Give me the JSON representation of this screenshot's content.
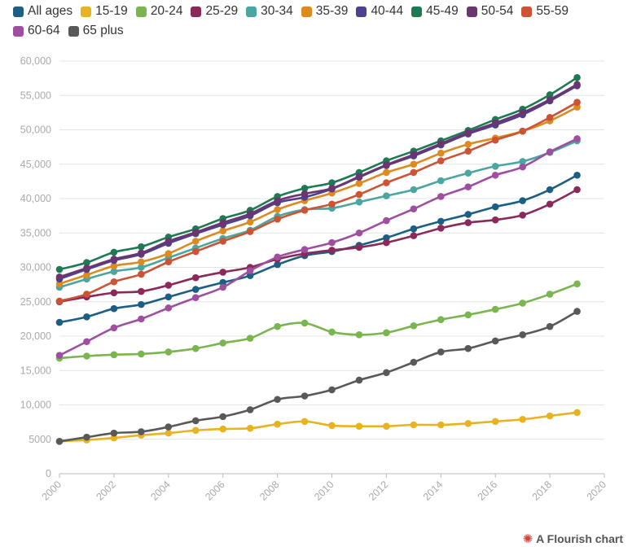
{
  "chart_data": {
    "type": "line",
    "title": "",
    "xlabel": "",
    "ylabel": "",
    "x": [
      2000,
      2001,
      2002,
      2003,
      2004,
      2005,
      2006,
      2007,
      2008,
      2009,
      2010,
      2011,
      2012,
      2013,
      2014,
      2015,
      2016,
      2017,
      2018,
      2019
    ],
    "xlim": [
      2000,
      2020
    ],
    "ylim": [
      0,
      60000
    ],
    "x_ticks": [
      2000,
      2002,
      2004,
      2006,
      2008,
      2010,
      2012,
      2014,
      2016,
      2018,
      2020
    ],
    "x_tick_labels": [
      "2000",
      "2002",
      "2004",
      "2006",
      "2008",
      "2010",
      "2012",
      "2014",
      "2016",
      "2018",
      "2020"
    ],
    "y_ticks": [
      0,
      5000,
      10000,
      15000,
      20000,
      25000,
      30000,
      35000,
      40000,
      45000,
      50000,
      55000,
      60000
    ],
    "y_tick_labels": [
      "0",
      "5000",
      "10,000",
      "15,000",
      "20,000",
      "25,000",
      "30,000",
      "35,000",
      "40,000",
      "45,000",
      "50,000",
      "55,000",
      "60,000"
    ],
    "grid": "horizontal",
    "legend_position": "top",
    "series": [
      {
        "name": "All ages",
        "color": "#1d5f84",
        "values": [
          22000,
          22800,
          24000,
          24600,
          25700,
          26800,
          27800,
          28800,
          30400,
          31700,
          32300,
          33200,
          34300,
          35600,
          36700,
          37700,
          38800,
          39700,
          41300,
          43400
        ]
      },
      {
        "name": "15-19",
        "color": "#e8b323",
        "values": [
          4700,
          4900,
          5200,
          5600,
          5900,
          6300,
          6500,
          6600,
          7200,
          7600,
          7000,
          6900,
          6900,
          7100,
          7100,
          7300,
          7600,
          7900,
          8400,
          8900
        ]
      },
      {
        "name": "20-24",
        "color": "#7ab54f",
        "values": [
          16800,
          17100,
          17300,
          17400,
          17700,
          18200,
          19000,
          19700,
          21400,
          21900,
          20600,
          20200,
          20500,
          21500,
          22400,
          23100,
          23900,
          24800,
          26100,
          27600
        ]
      },
      {
        "name": "25-29",
        "color": "#8b2a5a",
        "values": [
          25000,
          25700,
          26300,
          26500,
          27400,
          28500,
          29300,
          30000,
          31200,
          32000,
          32500,
          32900,
          33600,
          34600,
          35700,
          36500,
          36900,
          37600,
          39200,
          41300
        ]
      },
      {
        "name": "30-34",
        "color": "#4aa6a0",
        "values": [
          27100,
          28300,
          29400,
          30000,
          31400,
          32800,
          34200,
          35400,
          37400,
          38400,
          38600,
          39500,
          40400,
          41300,
          42600,
          43700,
          44700,
          45400,
          46700,
          48400
        ]
      },
      {
        "name": "35-39",
        "color": "#dd8a1f",
        "values": [
          27600,
          28900,
          30200,
          30800,
          32000,
          33800,
          35300,
          36600,
          38400,
          39700,
          40800,
          42200,
          43800,
          45000,
          46600,
          47900,
          48800,
          49800,
          51300,
          53300
        ]
      },
      {
        "name": "40-44",
        "color": "#4e4191",
        "values": [
          28300,
          29700,
          31000,
          31900,
          33500,
          34900,
          36200,
          37500,
          39400,
          40200,
          41400,
          43100,
          44800,
          46200,
          47800,
          49400,
          50700,
          52200,
          54200,
          56400
        ]
      },
      {
        "name": "45-49",
        "color": "#1e7a52",
        "values": [
          29700,
          30700,
          32200,
          33000,
          34400,
          35600,
          37100,
          38300,
          40300,
          41500,
          42300,
          43800,
          45500,
          46900,
          48400,
          49900,
          51500,
          53000,
          55100,
          57600
        ]
      },
      {
        "name": "50-54",
        "color": "#6b3570",
        "values": [
          28600,
          29900,
          31200,
          32100,
          33800,
          35100,
          36500,
          37800,
          39700,
          40700,
          41500,
          43200,
          44900,
          46400,
          48000,
          49600,
          51000,
          52500,
          54400,
          56600
        ]
      },
      {
        "name": "55-59",
        "color": "#cc5434",
        "values": [
          25100,
          26100,
          27900,
          29000,
          30800,
          32300,
          33800,
          35200,
          37000,
          38300,
          39200,
          40600,
          42300,
          43800,
          45500,
          46900,
          48500,
          49800,
          51800,
          54000
        ]
      },
      {
        "name": "60-64",
        "color": "#9e4fa0",
        "values": [
          17200,
          19200,
          21200,
          22500,
          24100,
          25600,
          27100,
          29500,
          31500,
          32600,
          33600,
          35000,
          36800,
          38500,
          40300,
          41700,
          43400,
          44600,
          46800,
          48700
        ]
      },
      {
        "name": "65 plus",
        "color": "#595959",
        "values": [
          4700,
          5300,
          5900,
          6100,
          6800,
          7700,
          8300,
          9300,
          10800,
          11300,
          12200,
          13600,
          14700,
          16200,
          17700,
          18200,
          19300,
          20200,
          21400,
          23600
        ]
      }
    ]
  },
  "credit": {
    "icon": "flourish-logo-icon",
    "text": "A Flourish chart"
  }
}
